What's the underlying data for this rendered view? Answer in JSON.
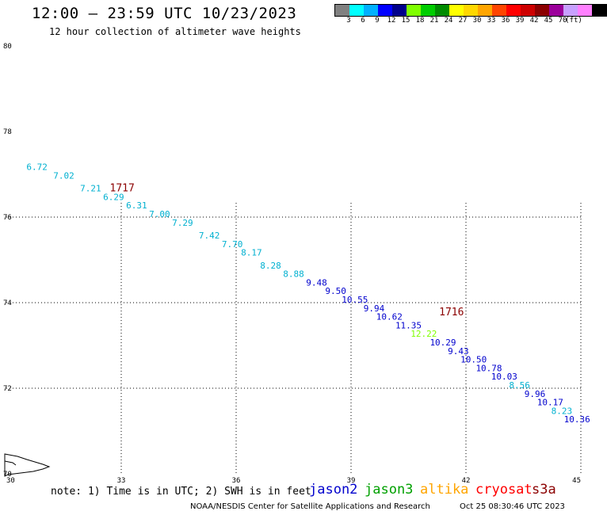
{
  "header": {
    "title": "12:00 — 23:59 UTC 10/23/2023",
    "subtitle": "12 hour collection of altimeter wave heights"
  },
  "colorbar": {
    "colors": [
      "#808080",
      "#00ffff",
      "#00b0ff",
      "#0000ff",
      "#00008b",
      "#7fff00",
      "#00cd00",
      "#008b00",
      "#ffff00",
      "#ffd700",
      "#ffa500",
      "#ff4500",
      "#ff0000",
      "#cd0000",
      "#8b0000",
      "#9b009b",
      "#c8a0ff",
      "#ff80ff",
      "#000000"
    ],
    "ticks": [
      "3",
      "6",
      "9",
      "12",
      "15",
      "18",
      "21",
      "24",
      "27",
      "30",
      "33",
      "36",
      "39",
      "42",
      "45",
      "70"
    ],
    "unit": "(ft)"
  },
  "map": {
    "lon_range": [
      30,
      45
    ],
    "lat_range": [
      70,
      80
    ],
    "x_ticks": [
      "30",
      "33",
      "36",
      "39",
      "42",
      "45"
    ],
    "y_ticks": [
      "70",
      "72",
      "74",
      "76",
      "78",
      "80"
    ],
    "grid_lons": [
      33,
      36,
      39,
      42,
      45
    ],
    "grid_lats": [
      72,
      74,
      76
    ],
    "pass_labels": [
      {
        "text": "1717",
        "lon": 32.7,
        "lat": 76.6,
        "color": "#8b0000"
      },
      {
        "text": "1716",
        "lon": 41.3,
        "lat": 73.7,
        "color": "#8b0000"
      }
    ],
    "observations": [
      {
        "value": "6.72",
        "lon": 30.8,
        "lat": 77.1,
        "color": "#00b0d0"
      },
      {
        "value": "7.02",
        "lon": 31.5,
        "lat": 76.9,
        "color": "#00b0d0"
      },
      {
        "value": "7.21",
        "lon": 32.2,
        "lat": 76.6,
        "color": "#00b0d0"
      },
      {
        "value": "6.29",
        "lon": 32.8,
        "lat": 76.4,
        "color": "#00b0d0"
      },
      {
        "value": "6.31",
        "lon": 33.4,
        "lat": 76.2,
        "color": "#00b0d0"
      },
      {
        "value": "7.00",
        "lon": 34.0,
        "lat": 76.0,
        "color": "#00b0d0"
      },
      {
        "value": "7.29",
        "lon": 34.6,
        "lat": 75.8,
        "color": "#00b0d0"
      },
      {
        "value": "7.42",
        "lon": 35.3,
        "lat": 75.5,
        "color": "#00b0d0"
      },
      {
        "value": "7.70",
        "lon": 35.9,
        "lat": 75.3,
        "color": "#00b0d0"
      },
      {
        "value": "8.17",
        "lon": 36.4,
        "lat": 75.1,
        "color": "#00b0d0"
      },
      {
        "value": "8.28",
        "lon": 36.9,
        "lat": 74.8,
        "color": "#00b0d0"
      },
      {
        "value": "8.88",
        "lon": 37.5,
        "lat": 74.6,
        "color": "#00b0d0"
      },
      {
        "value": "9.48",
        "lon": 38.1,
        "lat": 74.4,
        "color": "#0000cd"
      },
      {
        "value": "9.50",
        "lon": 38.6,
        "lat": 74.2,
        "color": "#0000cd"
      },
      {
        "value": "10.55",
        "lon": 39.1,
        "lat": 74.0,
        "color": "#0000cd"
      },
      {
        "value": "9.94",
        "lon": 39.6,
        "lat": 73.8,
        "color": "#0000cd"
      },
      {
        "value": "10.62",
        "lon": 40.0,
        "lat": 73.6,
        "color": "#0000cd"
      },
      {
        "value": "11.35",
        "lon": 40.5,
        "lat": 73.4,
        "color": "#0000cd"
      },
      {
        "value": "12.22",
        "lon": 40.9,
        "lat": 73.2,
        "color": "#7fff00"
      },
      {
        "value": "10.29",
        "lon": 41.4,
        "lat": 73.0,
        "color": "#0000cd"
      },
      {
        "value": "9.43",
        "lon": 41.8,
        "lat": 72.8,
        "color": "#0000cd"
      },
      {
        "value": "10.50",
        "lon": 42.2,
        "lat": 72.6,
        "color": "#0000cd"
      },
      {
        "value": "10.78",
        "lon": 42.6,
        "lat": 72.4,
        "color": "#0000cd"
      },
      {
        "value": "10.03",
        "lon": 43.0,
        "lat": 72.2,
        "color": "#0000cd"
      },
      {
        "value": "8.56",
        "lon": 43.4,
        "lat": 72.0,
        "color": "#00b0d0"
      },
      {
        "value": "9.96",
        "lon": 43.8,
        "lat": 71.8,
        "color": "#0000cd"
      },
      {
        "value": "10.17",
        "lon": 44.2,
        "lat": 71.6,
        "color": "#0000cd"
      },
      {
        "value": "8.23",
        "lon": 44.5,
        "lat": 71.4,
        "color": "#00b0d0"
      },
      {
        "value": "10.36",
        "lon": 44.9,
        "lat": 71.2,
        "color": "#0000cd"
      }
    ]
  },
  "footer": {
    "note": "note: 1) Time is in UTC; 2) SWH is in feet",
    "satellites": [
      {
        "name": "jason2",
        "color": "#0000cd"
      },
      {
        "name": "jason3",
        "color": "#00a000"
      },
      {
        "name": "altika",
        "color": "#ffa500"
      },
      {
        "name": "cryosat",
        "color": "#ff0000"
      },
      {
        "name": "s3a",
        "color": "#8b0000"
      }
    ],
    "credit": "NOAA/NESDIS Center for Satellite Applications and Research",
    "timestamp": "Oct 25 08:30:46 UTC 2023"
  }
}
